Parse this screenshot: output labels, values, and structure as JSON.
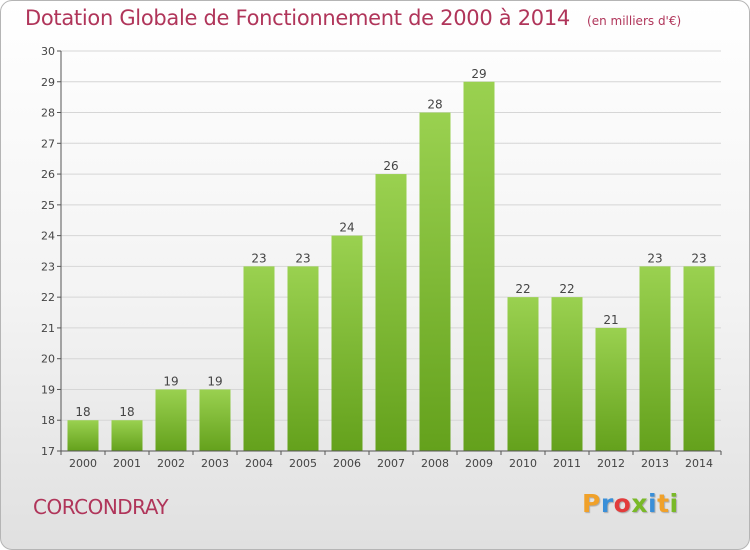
{
  "chart_data": {
    "type": "bar",
    "title": "Dotation Globale de Fonctionnement de 2000 à 2014",
    "unit_label": "(en milliers d'€)",
    "xlabel": "",
    "ylabel": "",
    "categories": [
      "2000",
      "2001",
      "2002",
      "2003",
      "2004",
      "2005",
      "2006",
      "2007",
      "2008",
      "2009",
      "2010",
      "2011",
      "2012",
      "2013",
      "2014"
    ],
    "values": [
      18,
      18,
      19,
      19,
      23,
      23,
      24,
      26,
      28,
      29,
      22,
      22,
      21,
      23,
      23
    ],
    "ylim": [
      17,
      30
    ],
    "yticks": [
      17,
      18,
      19,
      20,
      21,
      22,
      23,
      24,
      25,
      26,
      27,
      28,
      29,
      30
    ],
    "grid": true,
    "bar_color": "#7cc03a"
  },
  "footer": {
    "commune": "CORCONDRAY",
    "brand": "Proxiti",
    "brand_colors": [
      "#f0a12a",
      "#3a8fd8",
      "#e23c3c",
      "#79b928",
      "#3a8fd8",
      "#f0a12a",
      "#79b928"
    ]
  },
  "colors": {
    "accent": "#b0355a",
    "grid": "#d6d6d6",
    "axis": "#555555"
  }
}
